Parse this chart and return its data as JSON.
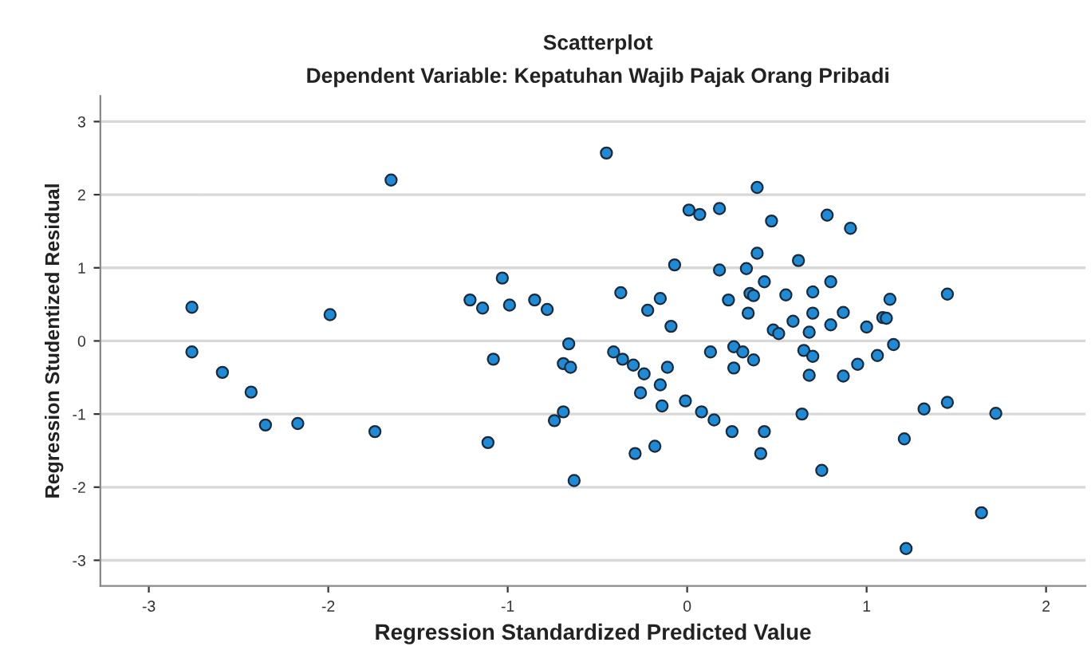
{
  "chart_data": {
    "type": "scatter",
    "title": "Scatterplot",
    "subtitle": "Dependent Variable: Kepatuhan Wajib Pajak Orang Pribadi",
    "xlabel": "Regression Standardized Predicted Value",
    "ylabel": "Regression Studentized Residual",
    "xlim": [
      -3.27,
      2.22
    ],
    "ylim": [
      -3.35,
      3.35
    ],
    "xticks": [
      -3,
      -2,
      -1,
      0,
      1,
      2
    ],
    "yticks": [
      -3,
      -2,
      -1,
      0,
      1,
      2,
      3
    ],
    "grid": "y",
    "marker": "circle",
    "legend": false,
    "series": [
      {
        "color": "#1f8ad6",
        "x": [
          -1.65,
          -2.76,
          -2.76,
          -2.59,
          -2.43,
          -2.35,
          -2.17,
          -1.99,
          -1.74,
          -1.21,
          -1.14,
          -1.03,
          -0.99,
          -0.85,
          -0.78,
          -1.08,
          -0.66,
          -0.69,
          -0.65,
          -1.11,
          -0.74,
          -0.69,
          -0.63,
          -0.45,
          0.39,
          0.01,
          0.07,
          0.18,
          0.47,
          0.78,
          0.91,
          -0.07,
          0.18,
          0.33,
          0.39,
          0.62,
          0.43,
          0.8,
          -0.37,
          -0.15,
          0.23,
          0.35,
          0.37,
          0.55,
          0.7,
          1.13,
          1.45,
          -0.22,
          0.34,
          0.7,
          0.87,
          -0.09,
          0.59,
          0.48,
          0.51,
          0.68,
          0.8,
          1.0,
          1.09,
          1.11,
          -0.41,
          -0.36,
          -0.3,
          -0.24,
          -0.11,
          -0.15,
          -0.26,
          -0.14,
          0.13,
          0.26,
          0.31,
          0.37,
          0.26,
          0.65,
          0.7,
          0.68,
          1.06,
          0.95,
          0.87,
          1.15,
          -0.01,
          0.08,
          0.15,
          0.25,
          0.43,
          0.41,
          0.64,
          -0.29,
          -0.18,
          0.75,
          1.21,
          1.32,
          1.45,
          1.72,
          1.64,
          1.22
        ],
        "values": [
          2.2,
          0.46,
          -0.15,
          -0.43,
          -0.7,
          -1.15,
          -1.13,
          0.36,
          -1.24,
          0.56,
          0.45,
          0.86,
          0.49,
          0.56,
          0.43,
          -0.25,
          -0.04,
          -0.31,
          -0.36,
          -1.39,
          -1.09,
          -0.97,
          -1.91,
          2.57,
          2.1,
          1.79,
          1.73,
          1.81,
          1.64,
          1.72,
          1.54,
          1.04,
          0.97,
          0.99,
          1.2,
          1.1,
          0.81,
          0.81,
          0.66,
          0.58,
          0.56,
          0.65,
          0.62,
          0.63,
          0.67,
          0.57,
          0.64,
          0.42,
          0.38,
          0.38,
          0.39,
          0.2,
          0.27,
          0.15,
          0.1,
          0.12,
          0.22,
          0.19,
          0.32,
          0.31,
          -0.15,
          -0.25,
          -0.33,
          -0.45,
          -0.36,
          -0.6,
          -0.71,
          -0.89,
          -0.15,
          -0.08,
          -0.15,
          -0.26,
          -0.37,
          -0.13,
          -0.21,
          -0.47,
          -0.2,
          -0.32,
          -0.48,
          -0.05,
          -0.82,
          -0.97,
          -1.08,
          -1.24,
          -1.24,
          -1.54,
          -1.0,
          -1.54,
          -1.44,
          -1.77,
          -1.34,
          -0.93,
          -0.84,
          -0.99,
          -2.35,
          -2.84
        ]
      }
    ]
  }
}
